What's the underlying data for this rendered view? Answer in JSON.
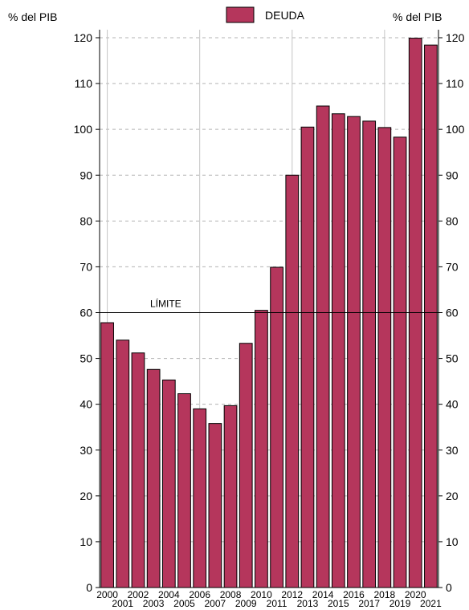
{
  "chart_data": {
    "type": "bar",
    "title": "",
    "left_axis_label": "% del PIB",
    "right_axis_label": "% del PIB",
    "legend": {
      "position": "top",
      "entries": [
        "DEUDA"
      ]
    },
    "series": [
      {
        "name": "DEUDA",
        "color": "#b5365c",
        "values": [
          57.8,
          54.0,
          51.2,
          47.6,
          45.3,
          42.3,
          39.0,
          35.8,
          39.7,
          53.3,
          60.5,
          69.9,
          90.0,
          100.5,
          105.1,
          103.4,
          102.8,
          101.8,
          100.4,
          98.3,
          119.9,
          118.4
        ]
      }
    ],
    "categories": [
      "2000",
      "2001",
      "2002",
      "2003",
      "2004",
      "2005",
      "2006",
      "2007",
      "2008",
      "2009",
      "2010",
      "2011",
      "2012",
      "2013",
      "2014",
      "2015",
      "2016",
      "2017",
      "2018",
      "2019",
      "2020",
      "2021"
    ],
    "ylim": [
      0,
      120
    ],
    "yticks": [
      0,
      10,
      20,
      30,
      40,
      50,
      60,
      70,
      80,
      90,
      100,
      110,
      120
    ],
    "grid": {
      "horizontal": "dashed",
      "vertical_every_years": 6
    },
    "reference_line": {
      "value": 60,
      "label": "LÍMITE"
    }
  }
}
